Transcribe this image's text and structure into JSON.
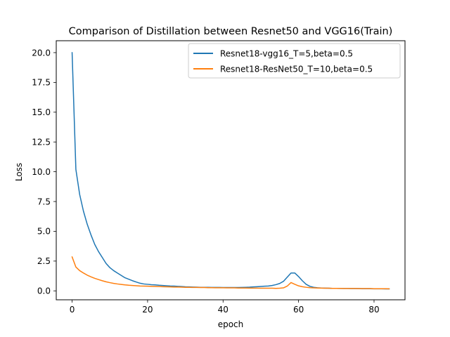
{
  "chart_data": {
    "type": "line",
    "title": "Comparison of Distillation between Resnet50 and VGG16(Train)",
    "xlabel": "epoch",
    "ylabel": "Loss",
    "xlim": [
      -4.2,
      88.2
    ],
    "ylim": [
      -0.75,
      21.0
    ],
    "xticks": [
      0,
      20,
      40,
      60,
      80
    ],
    "xtick_labels": [
      "0",
      "20",
      "40",
      "60",
      "80"
    ],
    "yticks": [
      0,
      2.5,
      5,
      7.5,
      10,
      12.5,
      15,
      17.5,
      20
    ],
    "ytick_labels": [
      "0.0",
      "2.5",
      "5.0",
      "7.5",
      "10.0",
      "12.5",
      "15.0",
      "17.5",
      "20.0"
    ],
    "grid": false,
    "legend_position": "upper-right",
    "x": [
      0,
      1,
      2,
      3,
      4,
      5,
      6,
      7,
      8,
      9,
      10,
      11,
      12,
      13,
      14,
      15,
      16,
      17,
      18,
      19,
      20,
      21,
      22,
      23,
      24,
      25,
      26,
      27,
      28,
      29,
      30,
      31,
      32,
      33,
      34,
      35,
      36,
      37,
      38,
      39,
      40,
      41,
      42,
      43,
      44,
      45,
      46,
      47,
      48,
      49,
      50,
      51,
      52,
      53,
      54,
      55,
      56,
      57,
      58,
      59,
      60,
      61,
      62,
      63,
      64,
      65,
      66,
      67,
      68,
      69,
      70,
      71,
      72,
      73,
      74,
      75,
      76,
      77,
      78,
      79,
      80,
      81,
      82,
      83,
      84
    ],
    "series": [
      {
        "name": "Resnet18-vgg16_T=5,beta=0.5",
        "color": "#1f77b4",
        "values": [
          20.0,
          10.2,
          8.1,
          6.7,
          5.6,
          4.7,
          3.9,
          3.3,
          2.8,
          2.3,
          1.95,
          1.7,
          1.5,
          1.3,
          1.1,
          0.98,
          0.85,
          0.74,
          0.64,
          0.58,
          0.55,
          0.52,
          0.5,
          0.47,
          0.45,
          0.43,
          0.41,
          0.4,
          0.38,
          0.36,
          0.34,
          0.33,
          0.32,
          0.31,
          0.3,
          0.3,
          0.3,
          0.29,
          0.29,
          0.29,
          0.28,
          0.28,
          0.28,
          0.28,
          0.28,
          0.29,
          0.3,
          0.31,
          0.33,
          0.35,
          0.37,
          0.39,
          0.41,
          0.45,
          0.52,
          0.62,
          0.8,
          1.15,
          1.5,
          1.5,
          1.2,
          0.85,
          0.55,
          0.38,
          0.3,
          0.26,
          0.24,
          0.23,
          0.22,
          0.21,
          0.21,
          0.2,
          0.2,
          0.2,
          0.19,
          0.19,
          0.19,
          0.18,
          0.18,
          0.18,
          0.17,
          0.17,
          0.17,
          0.16,
          0.16
        ]
      },
      {
        "name": "Resnet18-ResNet50_T=10,beta=0.5",
        "color": "#ff7f0e",
        "values": [
          2.85,
          2.0,
          1.7,
          1.5,
          1.32,
          1.18,
          1.05,
          0.95,
          0.85,
          0.76,
          0.69,
          0.63,
          0.58,
          0.54,
          0.5,
          0.47,
          0.45,
          0.43,
          0.41,
          0.4,
          0.39,
          0.38,
          0.37,
          0.36,
          0.35,
          0.34,
          0.33,
          0.32,
          0.32,
          0.31,
          0.3,
          0.3,
          0.29,
          0.29,
          0.28,
          0.28,
          0.27,
          0.27,
          0.26,
          0.26,
          0.26,
          0.25,
          0.25,
          0.25,
          0.24,
          0.24,
          0.24,
          0.23,
          0.23,
          0.23,
          0.22,
          0.22,
          0.22,
          0.22,
          0.21,
          0.22,
          0.25,
          0.4,
          0.7,
          0.55,
          0.42,
          0.35,
          0.3,
          0.27,
          0.25,
          0.24,
          0.23,
          0.22,
          0.22,
          0.21,
          0.21,
          0.21,
          0.2,
          0.2,
          0.2,
          0.2,
          0.19,
          0.19,
          0.19,
          0.19,
          0.18,
          0.18,
          0.18,
          0.18,
          0.17
        ]
      }
    ]
  }
}
